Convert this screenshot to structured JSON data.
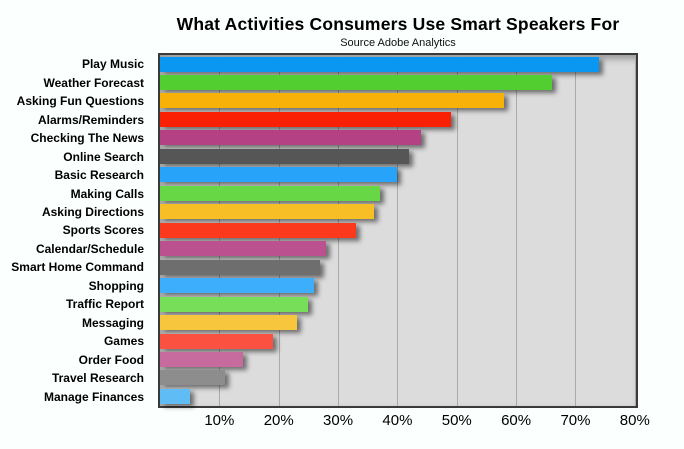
{
  "title": "What Activities Consumers Use Smart Speakers For",
  "subtitle": "Source Adobe Analytics",
  "chart_data": {
    "type": "bar",
    "orientation": "horizontal",
    "title": "What Activities Consumers Use Smart Speakers For",
    "subtitle": "Source Adobe Analytics",
    "categories": [
      "Play Music",
      "Weather Forecast",
      "Asking Fun Questions",
      "Alarms/Reminders",
      "Checking The News",
      "Online Search",
      "Basic Research",
      "Making Calls",
      "Asking Directions",
      "Sports Scores",
      "Calendar/Schedule",
      "Smart Home Command",
      "Shopping",
      "Traffic Report",
      "Messaging",
      "Games",
      "Order Food",
      "Travel Research",
      "Manage Finances"
    ],
    "values": [
      74,
      66,
      58,
      49,
      44,
      42,
      40,
      37,
      36,
      33,
      28,
      27,
      26,
      25,
      23,
      19,
      14,
      11,
      5
    ],
    "unit": "%",
    "bar_colors": [
      "#0997f2",
      "#52ce31",
      "#f7b108",
      "#fa2004",
      "#b44183",
      "#565656",
      "#27a4fa",
      "#67d746",
      "#f7be25",
      "#fb3a1d",
      "#bc5190",
      "#6e6e6e",
      "#3daefb",
      "#77de59",
      "#f8c63c",
      "#fa5140",
      "#c76b9e",
      "#8d8d8d",
      "#5fbcf5"
    ],
    "x_ticks": [
      "10%",
      "20%",
      "30%",
      "40%",
      "50%",
      "60%",
      "70%",
      "80%"
    ],
    "x_tick_values": [
      10,
      20,
      30,
      40,
      50,
      60,
      70,
      80
    ],
    "xlim": [
      0,
      80.2
    ],
    "xlabel": "",
    "ylabel": "",
    "grid": true,
    "legend": false,
    "plot_background": "#dcdcdc",
    "grid_color": "#ababab",
    "page_background": "#fbfffe"
  }
}
